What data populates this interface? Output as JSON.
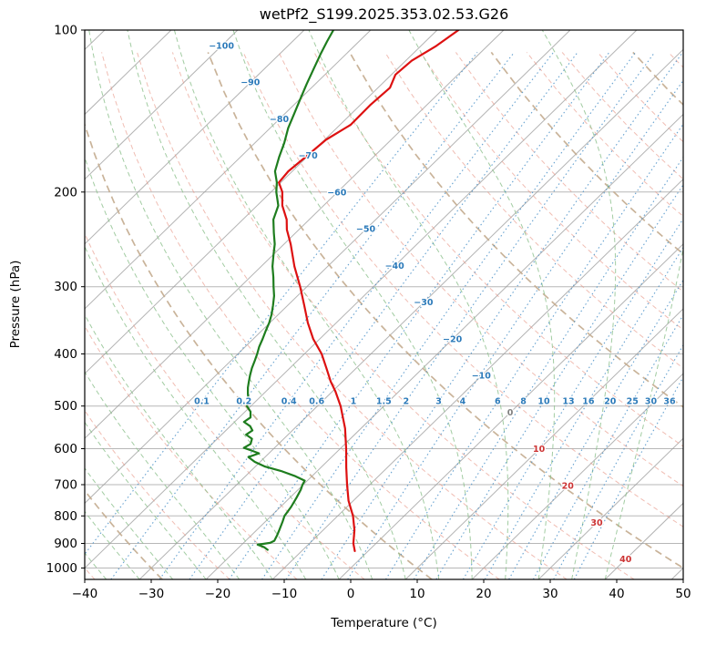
{
  "title": "wetPf2_S199.2025.353.02.53.G26",
  "axes": {
    "x_label": "Temperature (°C)",
    "y_label": "Pressure (hPa)",
    "x_ticks": [
      -40,
      -30,
      -20,
      -10,
      0,
      10,
      20,
      30,
      40,
      50
    ],
    "y_ticks": [
      100,
      200,
      300,
      400,
      500,
      600,
      700,
      800,
      900,
      1000
    ]
  },
  "chart_data": {
    "type": "line",
    "subtype": "skew-t-log-p-sounding",
    "title": "wetPf2_S199.2025.353.02.53.G26",
    "xlabel": "Temperature (°C)",
    "ylabel": "Pressure (hPa)",
    "x_axis": {
      "min": -40,
      "max": 50,
      "ticks": [
        -40,
        -30,
        -20,
        -10,
        0,
        10,
        20,
        30,
        40,
        50
      ]
    },
    "y_axis": {
      "min": 100,
      "max": 1050,
      "scale": "log",
      "ticks": [
        100,
        200,
        300,
        400,
        500,
        600,
        700,
        800,
        900,
        1000
      ]
    },
    "skew_degC_per_decade": 83,
    "series": [
      {
        "name": "temperature",
        "color": "#dd1111",
        "points": [
          [
            930,
            -2.0
          ],
          [
            900,
            -3.4
          ],
          [
            850,
            -5.3
          ],
          [
            800,
            -7.7
          ],
          [
            750,
            -10.7
          ],
          [
            700,
            -13.4
          ],
          [
            650,
            -16.2
          ],
          [
            600,
            -19.1
          ],
          [
            550,
            -22.4
          ],
          [
            500,
            -26.5
          ],
          [
            470,
            -29.5
          ],
          [
            450,
            -31.8
          ],
          [
            425,
            -34.5
          ],
          [
            400,
            -37.4
          ],
          [
            375,
            -41.0
          ],
          [
            350,
            -44.3
          ],
          [
            325,
            -47.5
          ],
          [
            300,
            -51.0
          ],
          [
            275,
            -55.0
          ],
          [
            250,
            -59.0
          ],
          [
            235,
            -61.8
          ],
          [
            225,
            -63.4
          ],
          [
            212,
            -66.2
          ],
          [
            200,
            -68.3
          ],
          [
            192,
            -70.3
          ],
          [
            183,
            -70.6
          ],
          [
            172,
            -70.2
          ],
          [
            160,
            -69.8
          ],
          [
            150,
            -68.4
          ],
          [
            138,
            -68.5
          ],
          [
            128,
            -68.2
          ],
          [
            121,
            -69.4
          ],
          [
            114,
            -69.1
          ],
          [
            107,
            -67.7
          ],
          [
            100,
            -66.8
          ]
        ]
      },
      {
        "name": "dewpoint",
        "color": "#1e7d1e",
        "points": [
          [
            925,
            -15.3
          ],
          [
            915,
            -16.2
          ],
          [
            905,
            -17.6
          ],
          [
            898,
            -16.0
          ],
          [
            890,
            -15.7
          ],
          [
            870,
            -16.1
          ],
          [
            850,
            -16.6
          ],
          [
            820,
            -17.4
          ],
          [
            800,
            -18.0
          ],
          [
            770,
            -18.4
          ],
          [
            740,
            -19.0
          ],
          [
            715,
            -19.6
          ],
          [
            700,
            -20.1
          ],
          [
            688,
            -20.4
          ],
          [
            675,
            -22.5
          ],
          [
            660,
            -25.5
          ],
          [
            648,
            -28.5
          ],
          [
            635,
            -30.8
          ],
          [
            622,
            -32.5
          ],
          [
            612,
            -31.5
          ],
          [
            605,
            -33.0
          ],
          [
            598,
            -34.6
          ],
          [
            588,
            -34.2
          ],
          [
            575,
            -34.8
          ],
          [
            565,
            -36.3
          ],
          [
            555,
            -36.0
          ],
          [
            545,
            -37.0
          ],
          [
            535,
            -38.6
          ],
          [
            525,
            -38.3
          ],
          [
            512,
            -39.2
          ],
          [
            500,
            -40.6
          ],
          [
            488,
            -41.2
          ],
          [
            475,
            -42.3
          ],
          [
            462,
            -43.3
          ],
          [
            450,
            -44.1
          ],
          [
            438,
            -44.9
          ],
          [
            425,
            -45.7
          ],
          [
            412,
            -46.4
          ],
          [
            400,
            -47.1
          ],
          [
            388,
            -47.9
          ],
          [
            375,
            -48.6
          ],
          [
            362,
            -49.4
          ],
          [
            350,
            -50.1
          ],
          [
            338,
            -51.0
          ],
          [
            325,
            -52.2
          ],
          [
            312,
            -53.5
          ],
          [
            300,
            -55.0
          ],
          [
            288,
            -56.5
          ],
          [
            275,
            -58.3
          ],
          [
            262,
            -59.9
          ],
          [
            250,
            -61.4
          ],
          [
            238,
            -63.3
          ],
          [
            225,
            -65.4
          ],
          [
            212,
            -66.8
          ],
          [
            200,
            -69.2
          ],
          [
            192,
            -70.6
          ],
          [
            183,
            -72.6
          ],
          [
            172,
            -74.2
          ],
          [
            162,
            -75.6
          ],
          [
            152,
            -77.3
          ],
          [
            143,
            -78.6
          ],
          [
            134,
            -80.0
          ],
          [
            126,
            -81.3
          ],
          [
            118,
            -82.6
          ],
          [
            111,
            -83.8
          ],
          [
            105,
            -84.8
          ],
          [
            100,
            -85.6
          ]
        ]
      }
    ],
    "background_lines": {
      "isobars": {
        "color": "#9a9a9a",
        "at": [
          100,
          200,
          300,
          400,
          500,
          600,
          700,
          800,
          900,
          1000
        ]
      },
      "isotherms": {
        "color": "#9a9a9a",
        "start": -160,
        "end": 50,
        "step": 10
      },
      "dry_adiabats": {
        "color": "#e8998b",
        "start": -40,
        "end": 190,
        "step": 10
      },
      "dry_adiabats_major": {
        "color": "#c3ab8e",
        "values": [
          -30,
          10,
          50,
          90,
          130,
          170
        ]
      },
      "moist_adiabats": {
        "color": "#8bbf8b",
        "start": -60,
        "end": 40,
        "step": 5
      },
      "mixing_ratio": {
        "color": "#4a90c8",
        "label_color": "#2d7bba",
        "values": [
          0.1,
          0.2,
          0.4,
          0.6,
          1,
          1.5,
          2,
          3,
          4,
          6,
          8,
          10,
          13,
          16,
          20,
          25,
          30,
          36
        ],
        "label_pressure": 490
      }
    },
    "isotherm_labels": {
      "values": [
        -100,
        -90,
        -80,
        -70,
        -60,
        -50,
        -40,
        -30,
        -20,
        -10,
        0,
        10,
        20,
        30,
        40
      ],
      "cold_color": "#2d7bba",
      "zero_color": "#808080",
      "warm_color": "#cc3333"
    }
  }
}
